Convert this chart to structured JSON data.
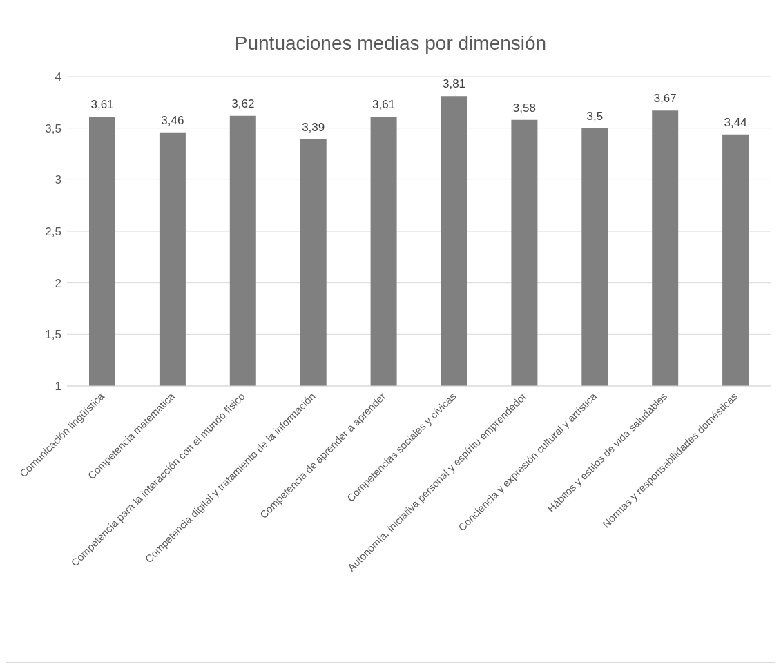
{
  "chart_data": {
    "type": "bar",
    "title": "Puntuaciones medias por dimensión",
    "categories": [
      "Comunicación lingüística",
      "Competencia matemática",
      "Competencia para la interacción con el mundo físico",
      "Competencia digital y tratamiento de la información",
      "Competencia de aprender a aprender",
      "Competencias sociales y cívicas",
      "Autonomía, iniciativa personal y espíritu emprendedor",
      "Conciencia y expresión cultural y artística",
      "Hábitos y estilos de vida saludables",
      "Normas y responsabilidades domésticas"
    ],
    "values": [
      3.61,
      3.46,
      3.62,
      3.39,
      3.61,
      3.81,
      3.58,
      3.5,
      3.67,
      3.44
    ],
    "value_labels": [
      "3,61",
      "3,46",
      "3,62",
      "3,39",
      "3,61",
      "3,81",
      "3,58",
      "3,5",
      "3,67",
      "3,44"
    ],
    "color": "#808080",
    "ylim": [
      1,
      4
    ],
    "yticks": [
      1,
      {
        "value": 1.5,
        "label": "1,5"
      },
      2,
      {
        "value": 2.5,
        "label": "2,5"
      },
      3,
      {
        "value": 3.5,
        "label": "3,5"
      },
      4
    ],
    "grid": "y"
  }
}
